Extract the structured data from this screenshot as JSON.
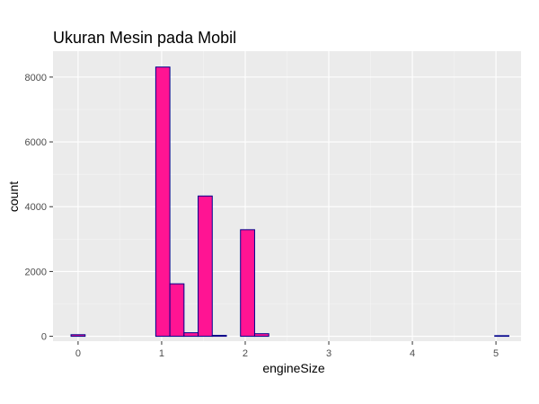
{
  "chart_data": {
    "type": "bar",
    "title": "Ukuran Mesin pada Mobil",
    "xlabel": "engineSize",
    "ylabel": "count",
    "xlim": [
      -0.3,
      5.3
    ],
    "ylim": [
      -150,
      8800
    ],
    "x_ticks": [
      0,
      1,
      2,
      3,
      4,
      5
    ],
    "y_ticks": [
      0,
      2000,
      4000,
      6000,
      8000
    ],
    "bin_width": 0.169,
    "bins": [
      {
        "center": 0.0,
        "count": 50
      },
      {
        "center": 0.169,
        "count": 0
      },
      {
        "center": 0.338,
        "count": 0
      },
      {
        "center": 0.507,
        "count": 0
      },
      {
        "center": 0.676,
        "count": 0
      },
      {
        "center": 0.845,
        "count": 0
      },
      {
        "center": 1.014,
        "count": 8310
      },
      {
        "center": 1.183,
        "count": 1620
      },
      {
        "center": 1.352,
        "count": 110
      },
      {
        "center": 1.521,
        "count": 4330
      },
      {
        "center": 1.69,
        "count": 30
      },
      {
        "center": 1.859,
        "count": 0
      },
      {
        "center": 2.028,
        "count": 3290
      },
      {
        "center": 2.197,
        "count": 80
      },
      {
        "center": 2.366,
        "count": 0
      },
      {
        "center": 2.535,
        "count": 0
      },
      {
        "center": 2.704,
        "count": 0
      },
      {
        "center": 2.873,
        "count": 0
      },
      {
        "center": 3.042,
        "count": 0
      },
      {
        "center": 3.211,
        "count": 0
      },
      {
        "center": 3.38,
        "count": 0
      },
      {
        "center": 3.549,
        "count": 0
      },
      {
        "center": 3.718,
        "count": 0
      },
      {
        "center": 3.887,
        "count": 0
      },
      {
        "center": 4.056,
        "count": 0
      },
      {
        "center": 4.225,
        "count": 0
      },
      {
        "center": 4.394,
        "count": 0
      },
      {
        "center": 4.563,
        "count": 0
      },
      {
        "center": 4.732,
        "count": 0
      },
      {
        "center": 4.901,
        "count": 0
      },
      {
        "center": 5.07,
        "count": 20
      }
    ],
    "grid": true,
    "legend": "none",
    "colors": {
      "bar_fill": "#ff1493",
      "bar_outline": "#00008b",
      "panel_background": "#ebebeb",
      "grid_major": "#ffffff",
      "grid_minor": "#f5f5f5"
    }
  }
}
